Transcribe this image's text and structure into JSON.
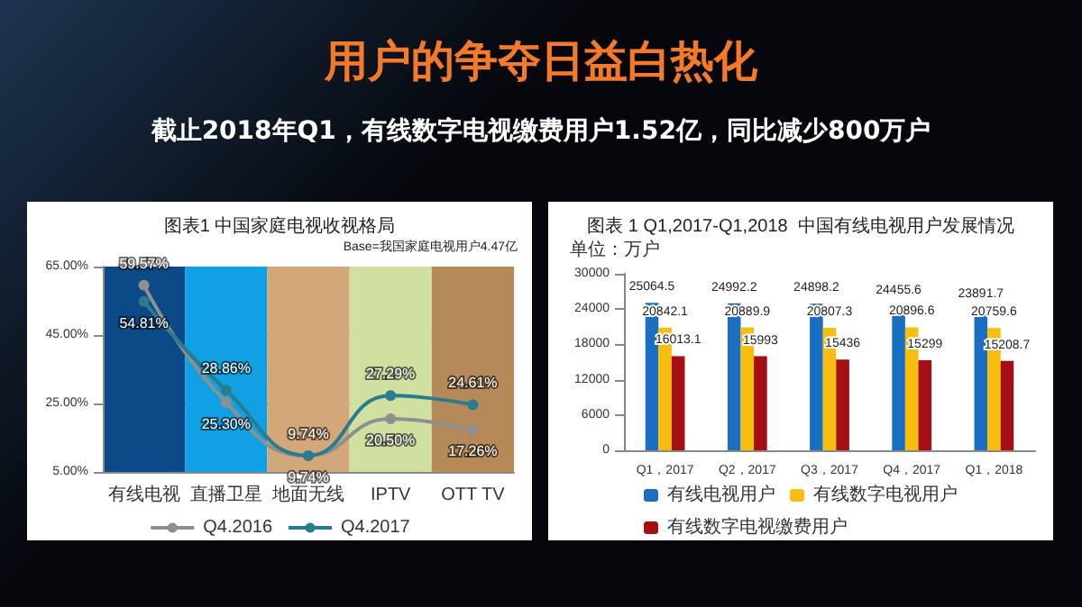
{
  "chart_data": [
    {
      "type": "other",
      "title": "用户的争夺日益白热化",
      "subtitle": "截止2018年Q1，有线数字电视缴费用户1.52亿，同比减少800万户"
    },
    {
      "type": "line",
      "title": "图表1 中国家庭电视收视格局",
      "annotations": [
        "Base=我国家庭电视用户4.47亿"
      ],
      "categories": [
        "有线电视",
        "直播卫星",
        "地面无线",
        "IPTV",
        "OTT TV"
      ],
      "series": [
        {
          "name": "Q4.2016",
          "color": "#8f8f8f",
          "values": [
            59.57,
            25.3,
            9.74,
            20.5,
            17.26
          ],
          "value_labels": [
            "59.57%",
            "25.30%",
            "9.74%",
            "20.50%",
            "17.26%"
          ]
        },
        {
          "name": "Q4.2017",
          "color": "#2b7b8f",
          "values": [
            54.81,
            28.86,
            9.74,
            27.29,
            24.61
          ],
          "value_labels": [
            "54.81%",
            "28.86%",
            "9.74%",
            "27.29%",
            "24.61%"
          ]
        }
      ],
      "ylim": [
        5,
        65
      ],
      "yticks": [
        {
          "value": 5,
          "label": "5.00%"
        },
        {
          "value": 25,
          "label": "25.00%"
        },
        {
          "value": 45,
          "label": "45.00%"
        },
        {
          "value": 65,
          "label": "65.00%"
        }
      ],
      "bands": [
        {
          "axis": "x",
          "from": "有线电视",
          "to": "有线电视",
          "color": "#0b4a86"
        },
        {
          "axis": "x",
          "from": "直播卫星",
          "to": "直播卫星",
          "color": "#0fa1e4"
        },
        {
          "axis": "x",
          "from": "地面无线",
          "to": "地面无线",
          "color": "#d2a77a"
        },
        {
          "axis": "x",
          "from": "IPTV",
          "to": "IPTV",
          "color": "#cfe0a1"
        },
        {
          "axis": "x",
          "from": "OTT TV",
          "to": "OTT TV",
          "color": "#b58a58"
        }
      ],
      "grid": "y",
      "marker": "circle",
      "legend": "bottom"
    },
    {
      "type": "bar",
      "title": "图表 1 Q1,2017-Q1,2018  中国有线电视用户发展情况",
      "ylabel": "单位：万户",
      "categories": [
        "Q1，2017",
        "Q2，2017",
        "Q3，2017",
        "Q4，2017",
        "Q1，2018"
      ],
      "series": [
        {
          "name": "有线电视用户",
          "color": "#1b6fc2",
          "values": [
            25064.5,
            24992.2,
            24898.2,
            24455.6,
            23891.7
          ]
        },
        {
          "name": "有线数字电视用户",
          "color": "#f7bd0f",
          "values": [
            20842.1,
            20889.9,
            20807.3,
            20896.6,
            20759.6
          ]
        },
        {
          "name": "有线数字电视缴费用户",
          "color": "#a50f13",
          "values": [
            16013.1,
            15993,
            15436,
            15299,
            15208.7
          ]
        }
      ],
      "ylim": [
        0,
        30000
      ],
      "yticks": [
        0,
        6000,
        12000,
        18000,
        24000,
        30000
      ],
      "data_labels": true,
      "legend": "bottom"
    }
  ]
}
